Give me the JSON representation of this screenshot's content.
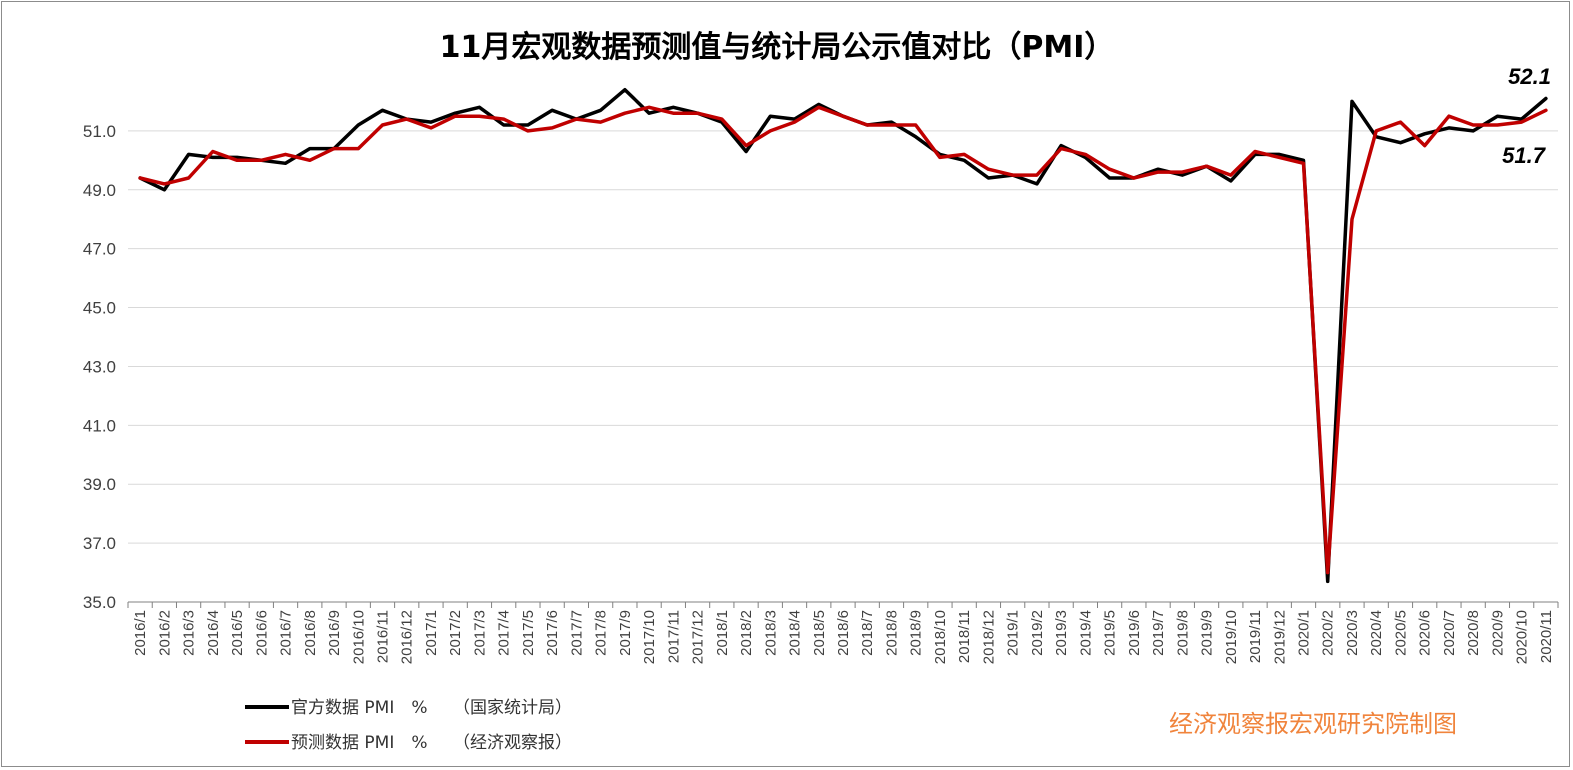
{
  "chart_data": {
    "type": "line",
    "title": "11月宏观数据预测值与统计局公示值对比（PMI）",
    "xlabel": "",
    "ylabel": "",
    "ylim": [
      35.0,
      53.0
    ],
    "yticks": [
      "35.0",
      "37.0",
      "39.0",
      "41.0",
      "43.0",
      "45.0",
      "47.0",
      "49.0",
      "51.0"
    ],
    "grid": true,
    "legend_position": "bottom-left",
    "categories": [
      "2016/1",
      "2016/2",
      "2016/3",
      "2016/4",
      "2016/5",
      "2016/6",
      "2016/7",
      "2016/8",
      "2016/9",
      "2016/10",
      "2016/11",
      "2016/12",
      "2017/1",
      "2017/2",
      "2017/3",
      "2017/4",
      "2017/5",
      "2017/6",
      "2017/7",
      "2017/8",
      "2017/9",
      "2017/10",
      "2017/11",
      "2017/12",
      "2018/1",
      "2018/2",
      "2018/3",
      "2018/4",
      "2018/5",
      "2018/6",
      "2018/7",
      "2018/8",
      "2018/9",
      "2018/10",
      "2018/11",
      "2018/12",
      "2019/1",
      "2019/2",
      "2019/3",
      "2019/4",
      "2019/5",
      "2019/6",
      "2019/7",
      "2019/8",
      "2019/9",
      "2019/10",
      "2019/11",
      "2019/12",
      "2020/1",
      "2020/2",
      "2020/3",
      "2020/4",
      "2020/5",
      "2020/6",
      "2020/7",
      "2020/8",
      "2020/9",
      "2020/10",
      "2020/11"
    ],
    "series": [
      {
        "name": "官方数据 PMI　%　　（国家统计局）",
        "color": "#000000",
        "values": [
          49.4,
          49.0,
          50.2,
          50.1,
          50.1,
          50.0,
          49.9,
          50.4,
          50.4,
          51.2,
          51.7,
          51.4,
          51.3,
          51.6,
          51.8,
          51.2,
          51.2,
          51.7,
          51.4,
          51.7,
          52.4,
          51.6,
          51.8,
          51.6,
          51.3,
          50.3,
          51.5,
          51.4,
          51.9,
          51.5,
          51.2,
          51.3,
          50.8,
          50.2,
          50.0,
          49.4,
          49.5,
          49.2,
          50.5,
          50.1,
          49.4,
          49.4,
          49.7,
          49.5,
          49.8,
          49.3,
          50.2,
          50.2,
          50.0,
          35.7,
          52.0,
          50.8,
          50.6,
          50.9,
          51.1,
          51.0,
          51.5,
          51.4,
          52.1
        ]
      },
      {
        "name": "预测数据 PMI　%　　（经济观察报）",
        "color": "#c00000",
        "values": [
          49.4,
          49.2,
          49.4,
          50.3,
          50.0,
          50.0,
          50.2,
          50.0,
          50.4,
          50.4,
          51.2,
          51.4,
          51.1,
          51.5,
          51.5,
          51.4,
          51.0,
          51.1,
          51.4,
          51.3,
          51.6,
          51.8,
          51.6,
          51.6,
          51.4,
          50.5,
          51.0,
          51.3,
          51.8,
          51.5,
          51.2,
          51.2,
          51.2,
          50.1,
          50.2,
          49.7,
          49.5,
          49.5,
          50.4,
          50.2,
          49.7,
          49.4,
          49.6,
          49.6,
          49.8,
          49.5,
          50.3,
          50.1,
          49.9,
          36.0,
          48.0,
          51.0,
          51.3,
          50.5,
          51.5,
          51.2,
          51.2,
          51.3,
          51.7
        ]
      }
    ],
    "annotations": [
      "52.1",
      "51.7"
    ]
  },
  "credit": "经济观察报宏观研究院制图"
}
